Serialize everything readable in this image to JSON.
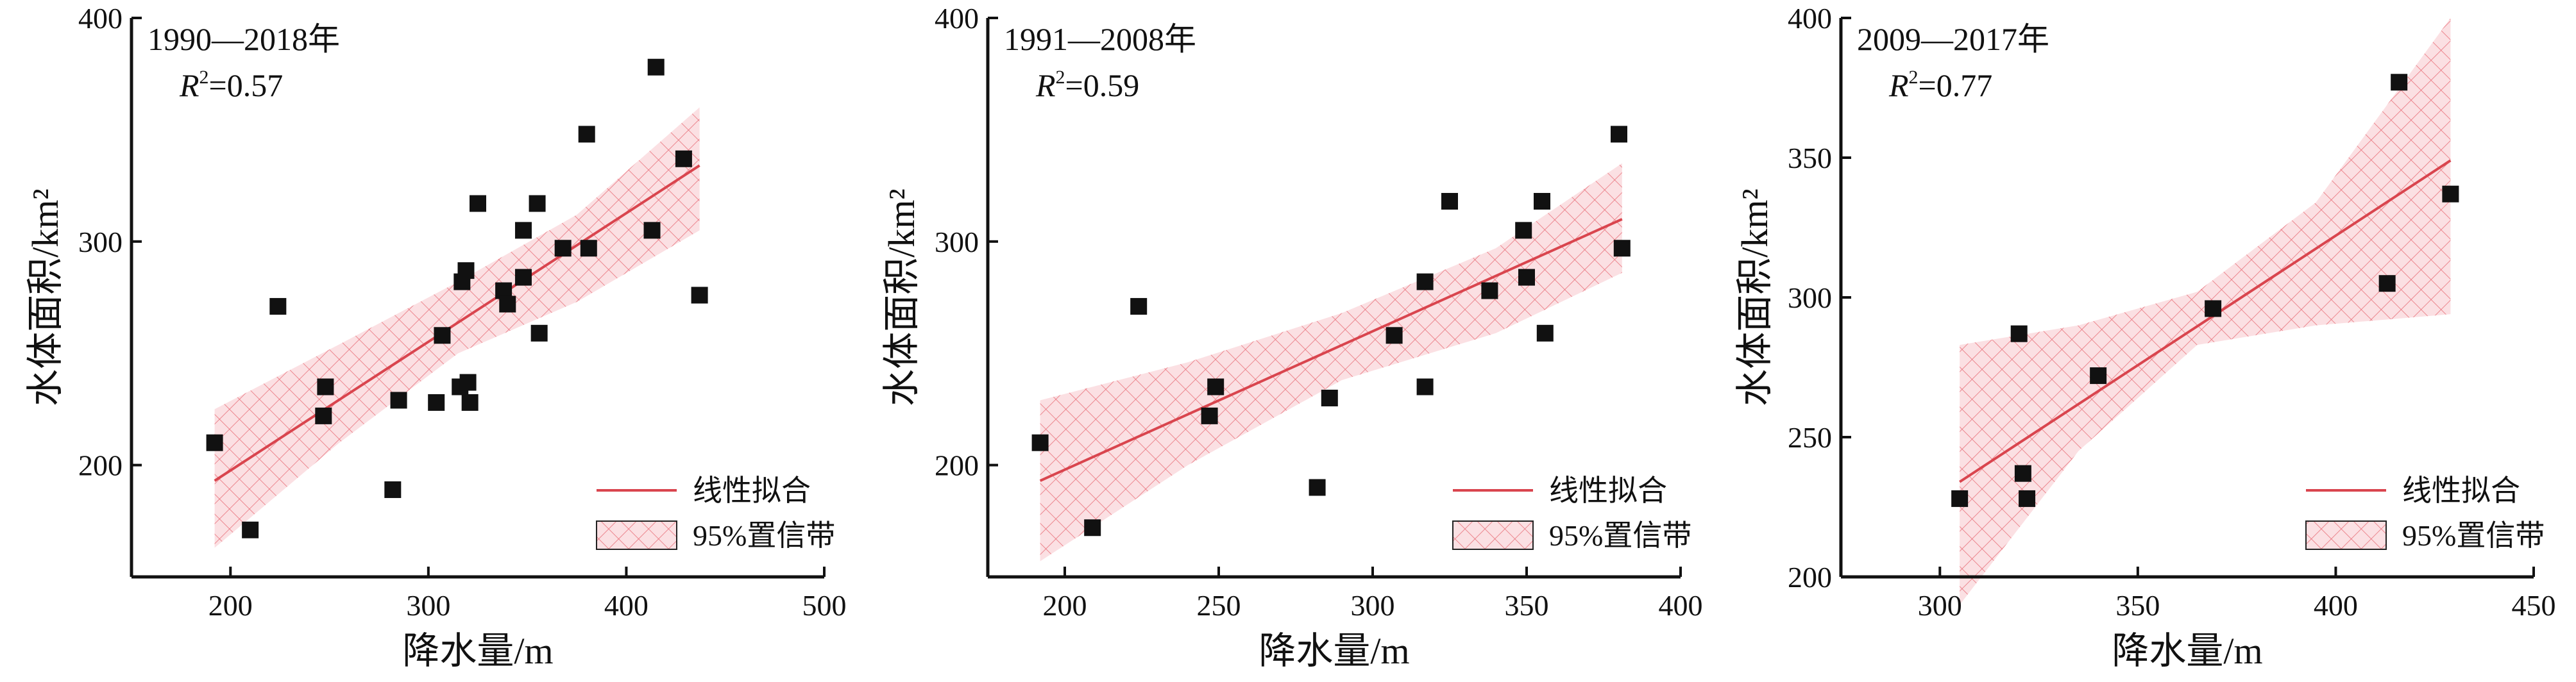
{
  "colors": {
    "fit_line": "#d9454e",
    "band_fill": "#f7c6cb",
    "band_hatch": "#e8707a",
    "point": "#111111",
    "axis": "#111111"
  },
  "chart_data": [
    {
      "type": "scatter",
      "title": "1990—2018年",
      "r2_prefix": "R",
      "r2_sup": "2",
      "r2_value": "=0.57",
      "xlabel": "降水量/m",
      "ylabel": "水体面积/km²",
      "xlim": [
        150,
        500
      ],
      "ylim": [
        150,
        400
      ],
      "xticks": [
        200,
        300,
        400,
        500
      ],
      "yticks": [
        200,
        300,
        400
      ],
      "points": [
        [
          192,
          210
        ],
        [
          210,
          171
        ],
        [
          224,
          271
        ],
        [
          247,
          222
        ],
        [
          248,
          235
        ],
        [
          282,
          189
        ],
        [
          285,
          229
        ],
        [
          304,
          228
        ],
        [
          307,
          258
        ],
        [
          316,
          235
        ],
        [
          317,
          282
        ],
        [
          319,
          287
        ],
        [
          320,
          237
        ],
        [
          321,
          228
        ],
        [
          325,
          317
        ],
        [
          338,
          278
        ],
        [
          340,
          272
        ],
        [
          348,
          305
        ],
        [
          348,
          284
        ],
        [
          355,
          317
        ],
        [
          356,
          259
        ],
        [
          368,
          297
        ],
        [
          380,
          348
        ],
        [
          381,
          297
        ],
        [
          413,
          305
        ],
        [
          415,
          378
        ],
        [
          429,
          337
        ],
        [
          437,
          276
        ]
      ],
      "fit": {
        "x": [
          192,
          437
        ],
        "y": [
          193,
          334
        ]
      },
      "band": {
        "x": [
          192,
          255,
          315,
          375,
          437
        ],
        "upper": [
          225,
          254,
          282,
          312,
          360
        ],
        "lower": [
          163,
          210,
          250,
          273,
          305
        ]
      },
      "legend": {
        "fit_label": "线性拟合",
        "band_label": "95%置信带",
        "position": "bottom-right"
      }
    },
    {
      "type": "scatter",
      "title": "1991—2008年",
      "r2_prefix": "R",
      "r2_sup": "2",
      "r2_value": "=0.59",
      "xlabel": "降水量/m",
      "ylabel": "水体面积/km²",
      "xlim": [
        175,
        400
      ],
      "ylim": [
        150,
        400
      ],
      "xticks": [
        200,
        250,
        300,
        350,
        400
      ],
      "yticks": [
        200,
        300,
        400
      ],
      "points": [
        [
          192,
          210
        ],
        [
          209,
          172
        ],
        [
          224,
          271
        ],
        [
          247,
          222
        ],
        [
          249,
          235
        ],
        [
          282,
          190
        ],
        [
          286,
          230
        ],
        [
          307,
          258
        ],
        [
          317,
          282
        ],
        [
          317,
          235
        ],
        [
          325,
          318
        ],
        [
          338,
          278
        ],
        [
          349,
          305
        ],
        [
          350,
          284
        ],
        [
          355,
          318
        ],
        [
          356,
          259
        ],
        [
          380,
          348
        ],
        [
          381,
          297
        ]
      ],
      "fit": {
        "x": [
          192,
          381
        ],
        "y": [
          193,
          310
        ]
      },
      "band": {
        "x": [
          192,
          240,
          290,
          340,
          381
        ],
        "upper": [
          229,
          246,
          268,
          297,
          335
        ],
        "lower": [
          157,
          200,
          238,
          259,
          286
        ]
      },
      "legend": {
        "fit_label": "线性拟合",
        "band_label": "95%置信带",
        "position": "bottom-right"
      }
    },
    {
      "type": "scatter",
      "title": "2009—2017年",
      "r2_prefix": "R",
      "r2_sup": "2",
      "r2_value": "=0.77",
      "xlabel": "降水量/m",
      "ylabel": "水体面积/km²",
      "xlim": [
        275,
        450
      ],
      "ylim": [
        200,
        400
      ],
      "xticks": [
        300,
        350,
        400,
        450
      ],
      "yticks": [
        200,
        250,
        300,
        350,
        400
      ],
      "points": [
        [
          305,
          228
        ],
        [
          320,
          287
        ],
        [
          321,
          237
        ],
        [
          322,
          228
        ],
        [
          340,
          272
        ],
        [
          369,
          296
        ],
        [
          413,
          305
        ],
        [
          416,
          377
        ],
        [
          429,
          337
        ]
      ],
      "fit": {
        "x": [
          305,
          429
        ],
        "y": [
          234,
          349
        ]
      },
      "band": {
        "x": [
          305,
          335,
          365,
          395,
          429
        ],
        "upper": [
          283,
          290,
          302,
          334,
          400
        ],
        "lower": [
          190,
          245,
          283,
          290,
          294
        ]
      },
      "legend": {
        "fit_label": "线性拟合",
        "band_label": "95%置信带",
        "position": "bottom-right"
      }
    }
  ]
}
